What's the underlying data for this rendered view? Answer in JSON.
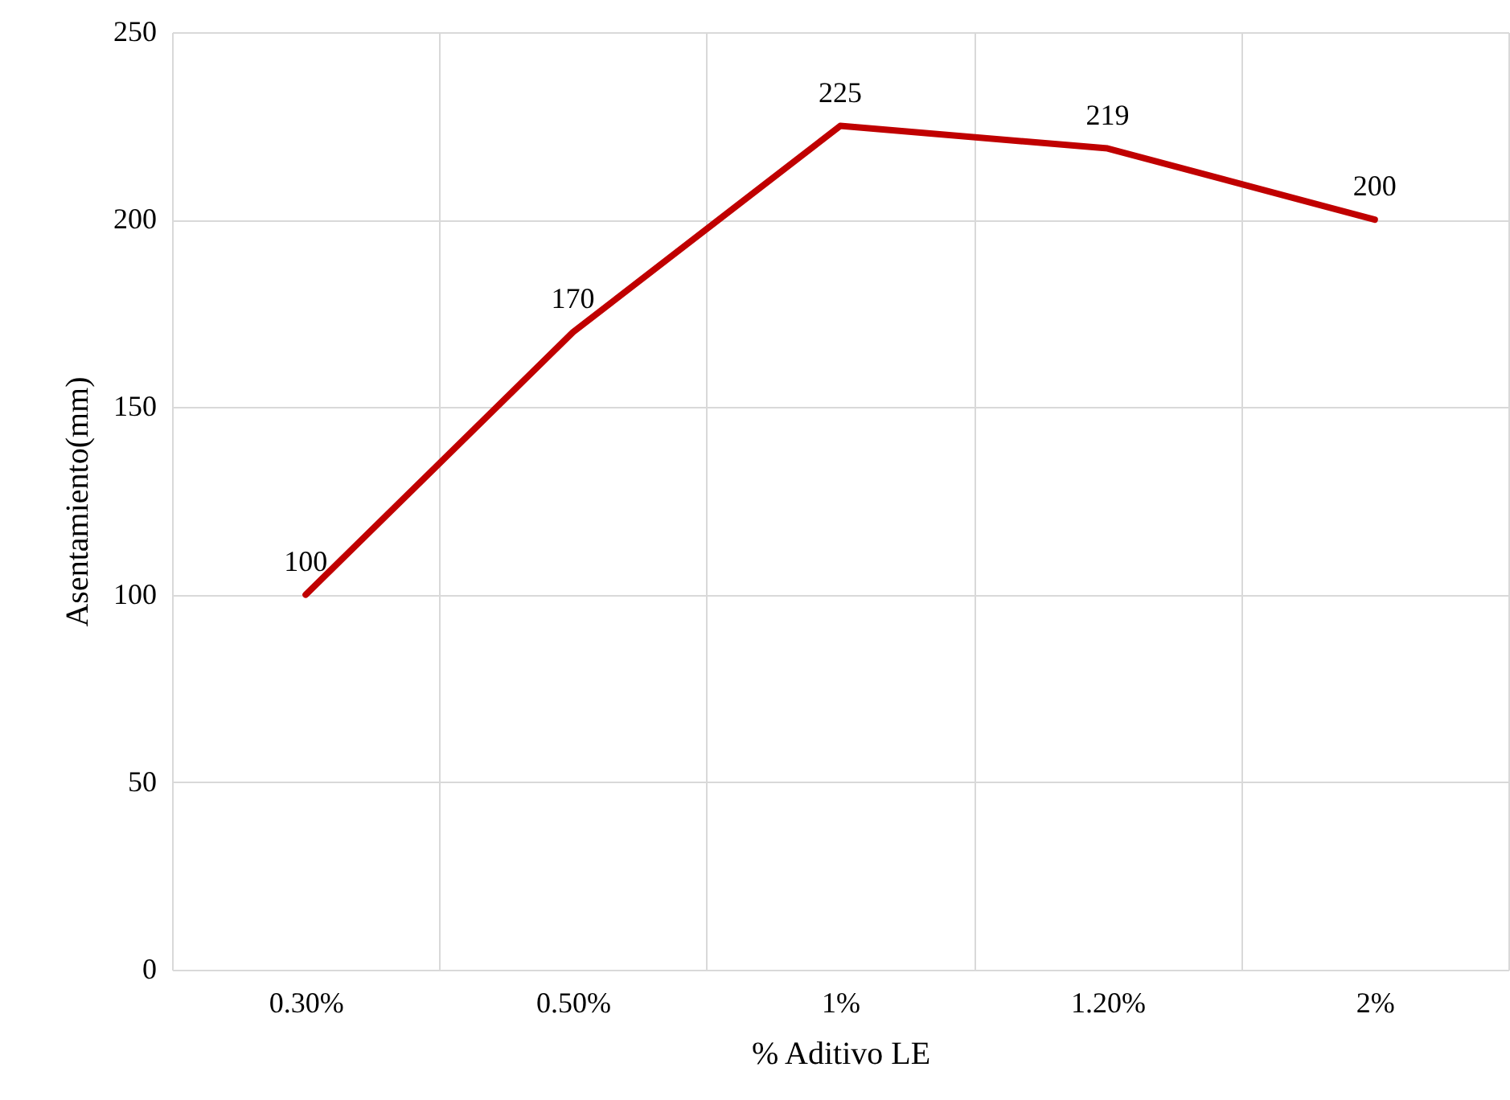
{
  "chart_data": {
    "type": "line",
    "xlabel": "% Aditivo LE",
    "ylabel": "Asentamiento(mm)",
    "categories": [
      "0.30%",
      "0.50%",
      "1%",
      "1.20%",
      "2%"
    ],
    "series": [
      {
        "color": "#c00000",
        "values": [
          100,
          170,
          225,
          219,
          200
        ]
      }
    ],
    "ylim": [
      0,
      250
    ],
    "yticks": [
      0,
      50,
      100,
      150,
      200,
      250
    ],
    "grid": true,
    "data_labels": true,
    "legend": false,
    "marker": "none"
  }
}
